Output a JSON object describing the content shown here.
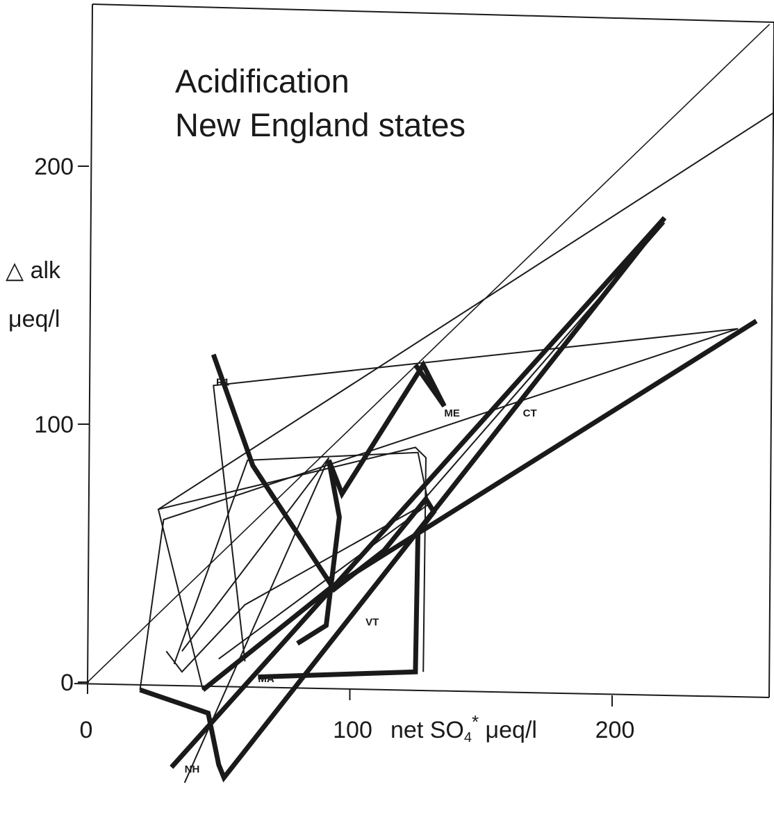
{
  "chart_data": {
    "type": "line",
    "title": [
      "Acidification",
      "New England states"
    ],
    "ylabel": [
      "△ alk",
      "μeq/l"
    ],
    "xlabel_parts": {
      "pre": "net SO",
      "sub": "4",
      "sup": "*",
      "post": " μeq/l"
    },
    "xticks": [
      {
        "value": 0,
        "label": "0"
      },
      {
        "value": 100,
        "label": "100"
      },
      {
        "value": 200,
        "label": "200"
      }
    ],
    "yticks": [
      {
        "value": 0,
        "label": "0"
      },
      {
        "value": 100,
        "label": "100"
      },
      {
        "value": 200,
        "label": "200"
      }
    ],
    "xlim": [
      0,
      260
    ],
    "ylim": [
      -45,
      262
    ],
    "reference_line": {
      "from": [
        0,
        0
      ],
      "to": [
        260,
        255
      ]
    },
    "state_labels": [
      {
        "text": "R1",
        "x": 49,
        "y": 115
      },
      {
        "text": "ME",
        "x": 136,
        "y": 103
      },
      {
        "text": "CT",
        "x": 166,
        "y": 103
      },
      {
        "text": "VT",
        "x": 106,
        "y": 22
      },
      {
        "text": "MA",
        "x": 65,
        "y": 0
      },
      {
        "text": "NH",
        "x": 37,
        "y": -35
      }
    ],
    "series": [
      {
        "weight": "thin",
        "points": [
          [
            27,
            67
          ],
          [
            125,
            91
          ],
          [
            129,
            87
          ],
          [
            128,
            4
          ]
        ]
      },
      {
        "weight": "thin",
        "points": [
          [
            44,
            -3
          ],
          [
            27,
            67
          ],
          [
            291,
            240
          ]
        ]
      },
      {
        "weight": "thin",
        "points": [
          [
            30,
            12
          ],
          [
            36,
            4
          ],
          [
            60,
            30
          ],
          [
            125,
            67
          ],
          [
            220,
            178
          ]
        ]
      },
      {
        "weight": "thin",
        "points": [
          [
            20,
            -3
          ],
          [
            29,
            63
          ],
          [
            248,
            137
          ],
          [
            48,
            115
          ],
          [
            60,
            8
          ]
        ]
      },
      {
        "weight": "thin",
        "points": [
          [
            36,
            12
          ],
          [
            92,
            87
          ],
          [
            37,
            -39
          ]
        ]
      },
      {
        "weight": "thin",
        "points": [
          [
            33,
            7
          ],
          [
            61,
            86
          ],
          [
            126,
            89
          ],
          [
            130,
            69
          ],
          [
            50,
            9
          ]
        ]
      },
      {
        "weight": "thick",
        "points": [
          [
            48,
            127
          ],
          [
            63,
            84
          ],
          [
            94,
            36
          ],
          [
            113,
            51
          ],
          [
            129,
            71
          ],
          [
            132,
            66
          ],
          [
            126,
            58
          ],
          [
            125,
            4
          ],
          [
            65,
            2
          ]
        ]
      },
      {
        "weight": "thick",
        "points": [
          [
            44,
            -3
          ],
          [
            92,
            36
          ],
          [
            255,
            140
          ]
        ]
      },
      {
        "weight": "thick",
        "points": [
          [
            32,
            -33
          ],
          [
            220,
            180
          ],
          [
            52,
            -37
          ],
          [
            50,
            -32
          ],
          [
            46,
            -12
          ],
          [
            20,
            -3
          ]
        ]
      },
      {
        "weight": "thick",
        "points": [
          [
            80,
            15
          ],
          [
            91,
            22
          ],
          [
            96,
            64
          ],
          [
            92,
            86
          ],
          [
            97,
            73
          ],
          [
            128,
            123
          ],
          [
            136,
            107
          ],
          [
            134,
            110
          ],
          [
            125,
            123
          ]
        ]
      }
    ]
  }
}
